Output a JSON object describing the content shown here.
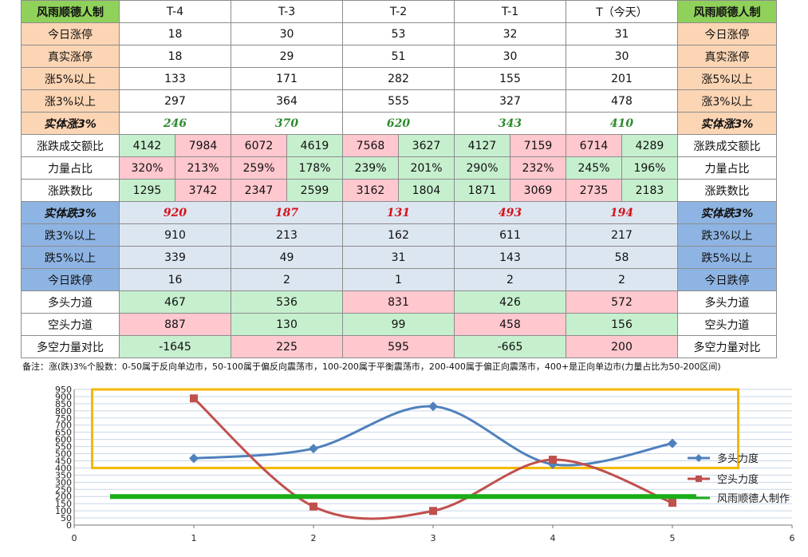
{
  "header": {
    "corner": "风雨顺德人制",
    "corner_right": "风雨顺德人制",
    "cols": [
      "T-4",
      "T-3",
      "T-2",
      "T-1",
      "T（今天）"
    ]
  },
  "rows": {
    "zt_today": {
      "label": "今日涨停",
      "values": [
        "18",
        "30",
        "53",
        "32",
        "31"
      ]
    },
    "zt_real": {
      "label": "真实涨停",
      "values": [
        "18",
        "29",
        "51",
        "30",
        "30"
      ]
    },
    "up5": {
      "label": "涨5%以上",
      "values": [
        "133",
        "171",
        "282",
        "155",
        "201"
      ]
    },
    "up3": {
      "label": "涨3%以上",
      "values": [
        "297",
        "364",
        "555",
        "327",
        "478"
      ]
    },
    "body_up3": {
      "label": "实体涨3%",
      "values": [
        "246",
        "370",
        "620",
        "343",
        "410"
      ]
    },
    "amount": {
      "label": "涨跌成交额比",
      "values": [
        "4142",
        "7984",
        "6072",
        "4619",
        "7568",
        "3627",
        "4127",
        "7159",
        "6714",
        "4289"
      ]
    },
    "power": {
      "label": "力量占比",
      "values": [
        "320%",
        "213%",
        "259%",
        "178%",
        "239%",
        "201%",
        "290%",
        "232%",
        "245%",
        "196%"
      ]
    },
    "count": {
      "label": "涨跌数比",
      "values": [
        "1295",
        "3742",
        "2347",
        "2599",
        "3162",
        "1804",
        "1871",
        "3069",
        "2735",
        "2183"
      ]
    },
    "body_down3": {
      "label": "实体跌3%",
      "values": [
        "920",
        "187",
        "131",
        "493",
        "194"
      ]
    },
    "down3": {
      "label": "跌3%以上",
      "values": [
        "910",
        "213",
        "162",
        "611",
        "217"
      ]
    },
    "down5": {
      "label": "跌5%以上",
      "values": [
        "339",
        "49",
        "31",
        "143",
        "58"
      ]
    },
    "dt_today": {
      "label": "今日跌停",
      "values": [
        "16",
        "2",
        "1",
        "2",
        "2"
      ]
    },
    "bull": {
      "label": "多头力道",
      "values": [
        "467",
        "536",
        "831",
        "426",
        "572"
      ]
    },
    "bear": {
      "label": "空头力道",
      "values": [
        "887",
        "130",
        "99",
        "458",
        "156"
      ]
    },
    "ratio": {
      "label": "多空力量对比",
      "values": [
        "-1645",
        "225",
        "595",
        "-665",
        "200"
      ]
    }
  },
  "note": "备注：涨(跌)3%个股数：0-50属于反向单边市，50-100属于偏反向震荡市，100-200属于平衡震荡市，200-400属于偏正向震荡市，400+是正向单边市(力量占比为50-200区间)",
  "colors": {
    "bull": "#4f81bd",
    "bear": "#c0504d",
    "ref": "#1aad19",
    "box": "#f5b800",
    "grid": "#c9d6e8"
  },
  "chart_data": {
    "type": "line",
    "x_ticks": [
      0,
      1,
      2,
      3,
      4,
      5,
      6
    ],
    "y_ticks": [
      0,
      50,
      100,
      150,
      200,
      250,
      300,
      350,
      400,
      450,
      500,
      550,
      600,
      650,
      700,
      750,
      800,
      850,
      900,
      950
    ],
    "xlim": [
      0,
      6
    ],
    "ylim": [
      0,
      950
    ],
    "grid": true,
    "legend_position": "right",
    "series": [
      {
        "name": "多头力度",
        "x": [
          1,
          2,
          3,
          4,
          5
        ],
        "y": [
          467,
          536,
          831,
          426,
          572
        ],
        "color": "#4f81bd",
        "marker": "diamond",
        "smooth": true
      },
      {
        "name": "空头力度",
        "x": [
          1,
          2,
          3,
          4,
          5
        ],
        "y": [
          887,
          130,
          99,
          458,
          156
        ],
        "color": "#c0504d",
        "marker": "square",
        "smooth": true
      },
      {
        "name": "风雨顺德人制作",
        "x": [
          0.3,
          5.2
        ],
        "y": [
          200,
          200
        ],
        "color": "#1aad19",
        "marker": "none",
        "smooth": false
      }
    ],
    "highlight_box": {
      "x": [
        0.15,
        5.55
      ],
      "y": [
        400,
        950
      ]
    }
  }
}
